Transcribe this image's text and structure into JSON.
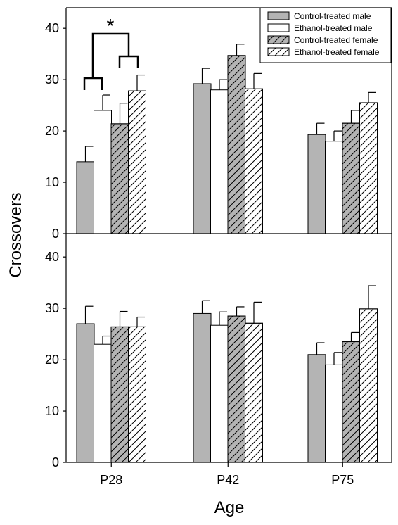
{
  "chart_data": {
    "type": "bar",
    "xlabel": "Age",
    "ylabel": "Crossovers",
    "categories": [
      "P28",
      "P42",
      "P75"
    ],
    "ylim": [
      0,
      44
    ],
    "yticks": [
      "0",
      "10",
      "20",
      "30",
      "40"
    ],
    "legend": {
      "placement": "top-right",
      "entries": [
        "Control-treated male",
        "Ethanol-treated male",
        "Control-treated female",
        "Ethanol-treated female"
      ]
    },
    "series_styles": [
      {
        "fill": "#b4b4b4",
        "hatch": false
      },
      {
        "fill": "#ffffff",
        "hatch": false
      },
      {
        "fill": "#b4b4b4",
        "hatch": true
      },
      {
        "fill": "#ffffff",
        "hatch": true
      }
    ],
    "panels": [
      {
        "series": [
          {
            "name": "Control-treated male",
            "values": [
              14,
              29.2,
              19.3
            ],
            "errors": [
              3.0,
              3.0,
              2.2
            ]
          },
          {
            "name": "Ethanol-treated male",
            "values": [
              24,
              28,
              18
            ],
            "errors": [
              3.0,
              2.0,
              2.0
            ]
          },
          {
            "name": "Control-treated female",
            "values": [
              21.4,
              34.7,
              21.5
            ],
            "errors": [
              4.0,
              2.2,
              2.5
            ]
          },
          {
            "name": "Ethanol-treated female",
            "values": [
              27.8,
              28.2,
              25.5
            ],
            "errors": [
              3.1,
              3.0,
              2.0
            ]
          }
        ],
        "annotation": {
          "text": "*",
          "category": "P28"
        }
      },
      {
        "series": [
          {
            "name": "Control-treated male",
            "values": [
              27,
              29,
              21
            ],
            "errors": [
              3.4,
              2.5,
              2.3
            ]
          },
          {
            "name": "Ethanol-treated male",
            "values": [
              23,
              26.7,
              19
            ],
            "errors": [
              1.6,
              2.6,
              2.4
            ]
          },
          {
            "name": "Control-treated female",
            "values": [
              26.4,
              28.5,
              23.5
            ],
            "errors": [
              3.0,
              1.8,
              1.8
            ]
          },
          {
            "name": "Ethanol-treated female",
            "values": [
              26.4,
              27.1,
              29.9
            ],
            "errors": [
              1.9,
              4.1,
              4.5
            ]
          }
        ]
      }
    ]
  }
}
